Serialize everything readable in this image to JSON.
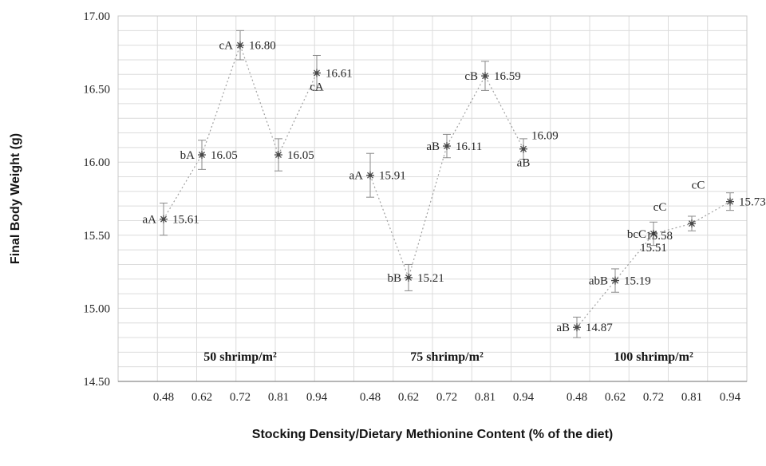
{
  "chart_data": {
    "type": "scatter",
    "title": "",
    "ylabel": "Final Body Weight (g)",
    "xlabel": "Stocking Density/Dietary Methionine Content (% of the diet)",
    "ylim": [
      14.5,
      17.0
    ],
    "ytick_step": 0.5,
    "ygrid_minor_step": 0.1,
    "grid": true,
    "legend": "none",
    "marker_style": "asterisk-star",
    "line_style": "dotted",
    "error_bars": true,
    "x_tick_labels": [
      "0.48",
      "0.62",
      "0.72",
      "0.81",
      "0.94"
    ],
    "groups": [
      {
        "label": "50 shrimp/m²",
        "points": [
          {
            "x": "0.48",
            "y": 15.61,
            "err": 0.11,
            "letters": "aA",
            "letters_pos": "left",
            "value": "15.61",
            "value_pos": "right"
          },
          {
            "x": "0.62",
            "y": 16.05,
            "err": 0.1,
            "letters": "bA",
            "letters_pos": "left",
            "value": "16.05",
            "value_pos": "right"
          },
          {
            "x": "0.72",
            "y": 16.8,
            "err": 0.1,
            "letters": "cA",
            "letters_pos": "left",
            "value": "16.80",
            "value_pos": "right"
          },
          {
            "x": "0.81",
            "y": 16.05,
            "err": 0.11,
            "letters": "",
            "letters_pos": "left",
            "value": "16.05",
            "value_pos": "right"
          },
          {
            "x": "0.94",
            "y": 16.61,
            "err": 0.12,
            "letters": "cA",
            "letters_pos": "below",
            "value": "16.61",
            "value_pos": "right"
          }
        ]
      },
      {
        "label": "75 shrimp/m²",
        "points": [
          {
            "x": "0.48",
            "y": 15.91,
            "err": 0.15,
            "letters": "aA",
            "letters_pos": "left",
            "value": "15.91",
            "value_pos": "right"
          },
          {
            "x": "0.62",
            "y": 15.21,
            "err": 0.09,
            "letters": "bB",
            "letters_pos": "left",
            "value": "15.21",
            "value_pos": "right"
          },
          {
            "x": "0.72",
            "y": 16.11,
            "err": 0.08,
            "letters": "aB",
            "letters_pos": "left",
            "value": "16.11",
            "value_pos": "right"
          },
          {
            "x": "0.81",
            "y": 16.59,
            "err": 0.1,
            "letters": "cB",
            "letters_pos": "left",
            "value": "16.59",
            "value_pos": "right"
          },
          {
            "x": "0.94",
            "y": 16.09,
            "err": 0.07,
            "letters": "aB",
            "letters_pos": "below",
            "value": "16.09",
            "value_pos": "above-right"
          }
        ]
      },
      {
        "label": "100 shrimp/m²",
        "points": [
          {
            "x": "0.48",
            "y": 14.87,
            "err": 0.07,
            "letters": "aB",
            "letters_pos": "left",
            "value": "14.87",
            "value_pos": "right"
          },
          {
            "x": "0.62",
            "y": 15.19,
            "err": 0.08,
            "letters": "abB",
            "letters_pos": "left",
            "value": "15.19",
            "value_pos": "right"
          },
          {
            "x": "0.72",
            "y": 15.51,
            "err": 0.08,
            "letters": "bcC",
            "letters_pos": "left",
            "value": "15.51",
            "value_pos": "below"
          },
          {
            "x": "0.81",
            "y": 15.58,
            "err": 0.05,
            "letters": "cC",
            "letters_pos": "above-left",
            "value": "15.58",
            "value_pos": "below-left"
          },
          {
            "x": "0.94",
            "y": 15.73,
            "err": 0.06,
            "letters": "cC",
            "letters_pos": "above-left",
            "value": "15.73",
            "value_pos": "right"
          }
        ]
      }
    ]
  }
}
